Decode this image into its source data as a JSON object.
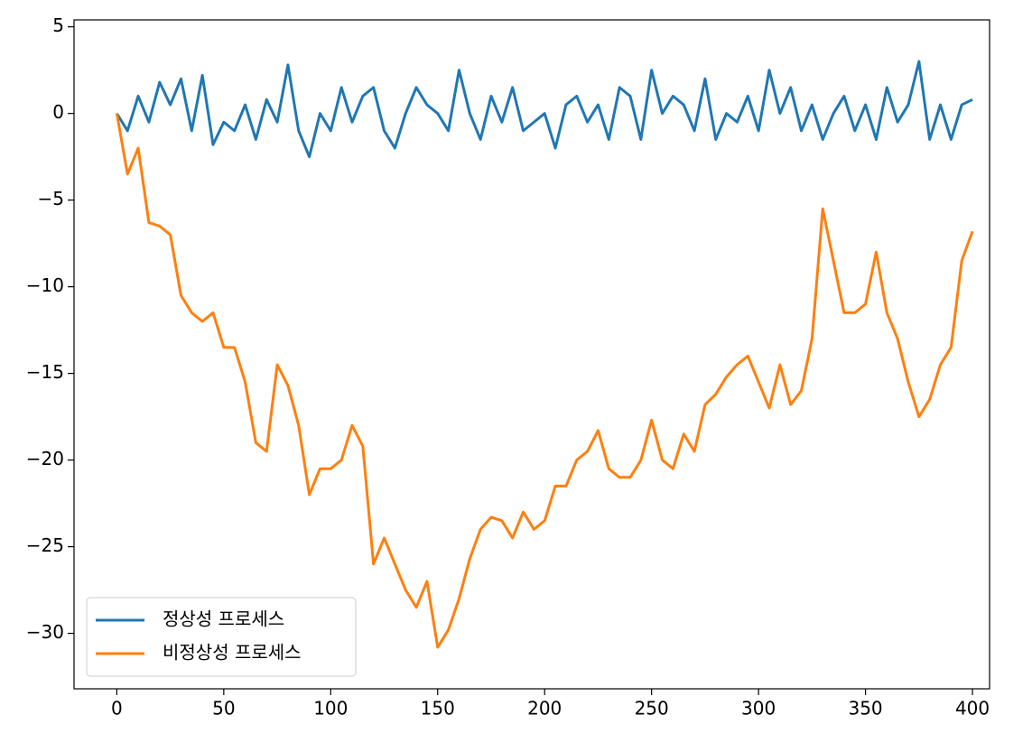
{
  "chart_data": {
    "type": "line",
    "x": [
      0,
      5,
      10,
      15,
      20,
      25,
      30,
      35,
      40,
      45,
      50,
      55,
      60,
      65,
      70,
      75,
      80,
      85,
      90,
      95,
      100,
      105,
      110,
      115,
      120,
      125,
      130,
      135,
      140,
      145,
      150,
      155,
      160,
      165,
      170,
      175,
      180,
      185,
      190,
      195,
      200,
      205,
      210,
      215,
      220,
      225,
      230,
      235,
      240,
      245,
      250,
      255,
      260,
      265,
      270,
      275,
      280,
      285,
      290,
      295,
      300,
      305,
      310,
      315,
      320,
      325,
      330,
      335,
      340,
      345,
      350,
      355,
      360,
      365,
      370,
      375,
      380,
      385,
      390,
      395,
      400
    ],
    "series": [
      {
        "name": "정상성 프로세스",
        "color": "#1f77b4",
        "values": [
          0,
          -1,
          1,
          -0.5,
          1.8,
          0.5,
          2,
          -1,
          2.2,
          -1.8,
          -0.5,
          -1,
          0.5,
          -1.5,
          0.8,
          -0.5,
          2.8,
          -1,
          -2.5,
          0,
          -1,
          1.5,
          -0.5,
          1,
          1.5,
          -1,
          -2,
          0,
          1.5,
          0.5,
          0,
          -1,
          2.5,
          0,
          -1.5,
          1,
          -0.5,
          1.5,
          -1,
          -0.5,
          0,
          -2,
          0.5,
          1,
          -0.5,
          0.5,
          -1.5,
          1.5,
          1,
          -1.5,
          2.5,
          0,
          1,
          0.5,
          -1,
          2,
          -1.5,
          0,
          -0.5,
          1,
          -1,
          2.5,
          0,
          1.5,
          -1,
          0.5,
          -1.5,
          0,
          1,
          -1,
          0.5,
          -1.5,
          1.5,
          -0.5,
          0.5,
          3,
          -1.5,
          0.5,
          -1.5,
          0.5,
          0.8
        ]
      },
      {
        "name": "비정상성 프로세스",
        "color": "#ff7f0e",
        "values": [
          0,
          -3.5,
          -2,
          -6.3,
          -6.5,
          -7,
          -10.5,
          -11.5,
          -12,
          -11.5,
          -13.5,
          -13.5,
          -15.5,
          -19,
          -19.5,
          -14.5,
          -15.7,
          -18,
          -22,
          -20.5,
          -20.5,
          -20,
          -18,
          -19.2,
          -26,
          -24.5,
          -26,
          -27.5,
          -28.5,
          -27,
          -30.8,
          -29.8,
          -28,
          -25.7,
          -24,
          -23.3,
          -23.5,
          -24.5,
          -23,
          -24,
          -23.5,
          -21.5,
          -21.5,
          -20,
          -19.5,
          -18.3,
          -20.5,
          -21,
          -21,
          -20,
          -17.7,
          -20,
          -20.5,
          -18.5,
          -19.5,
          -16.8,
          -16.2,
          -15.2,
          -14.5,
          -14,
          -15.5,
          -17,
          -14.5,
          -16.8,
          -16,
          -13,
          -5.5,
          -8.5,
          -11.5,
          -11.5,
          -11,
          -8,
          -11.5,
          -13,
          -15.5,
          -17.5,
          -16.5,
          -14.5,
          -13.5,
          -8.5,
          -6.8
        ]
      }
    ],
    "xlim": [
      -20,
      408
    ],
    "ylim": [
      -33.2,
      5.4
    ],
    "xticks": [
      0,
      50,
      100,
      150,
      200,
      250,
      300,
      350,
      400
    ],
    "yticks": [
      5,
      0,
      {
        "value": -5,
        "label": "−5"
      },
      {
        "value": -10,
        "label": "−10"
      },
      {
        "value": -15,
        "label": "−15"
      },
      {
        "value": -20,
        "label": "−20"
      },
      {
        "value": -25,
        "label": "−25"
      },
      {
        "value": -30,
        "label": "−30"
      }
    ],
    "legend": "lower left"
  }
}
